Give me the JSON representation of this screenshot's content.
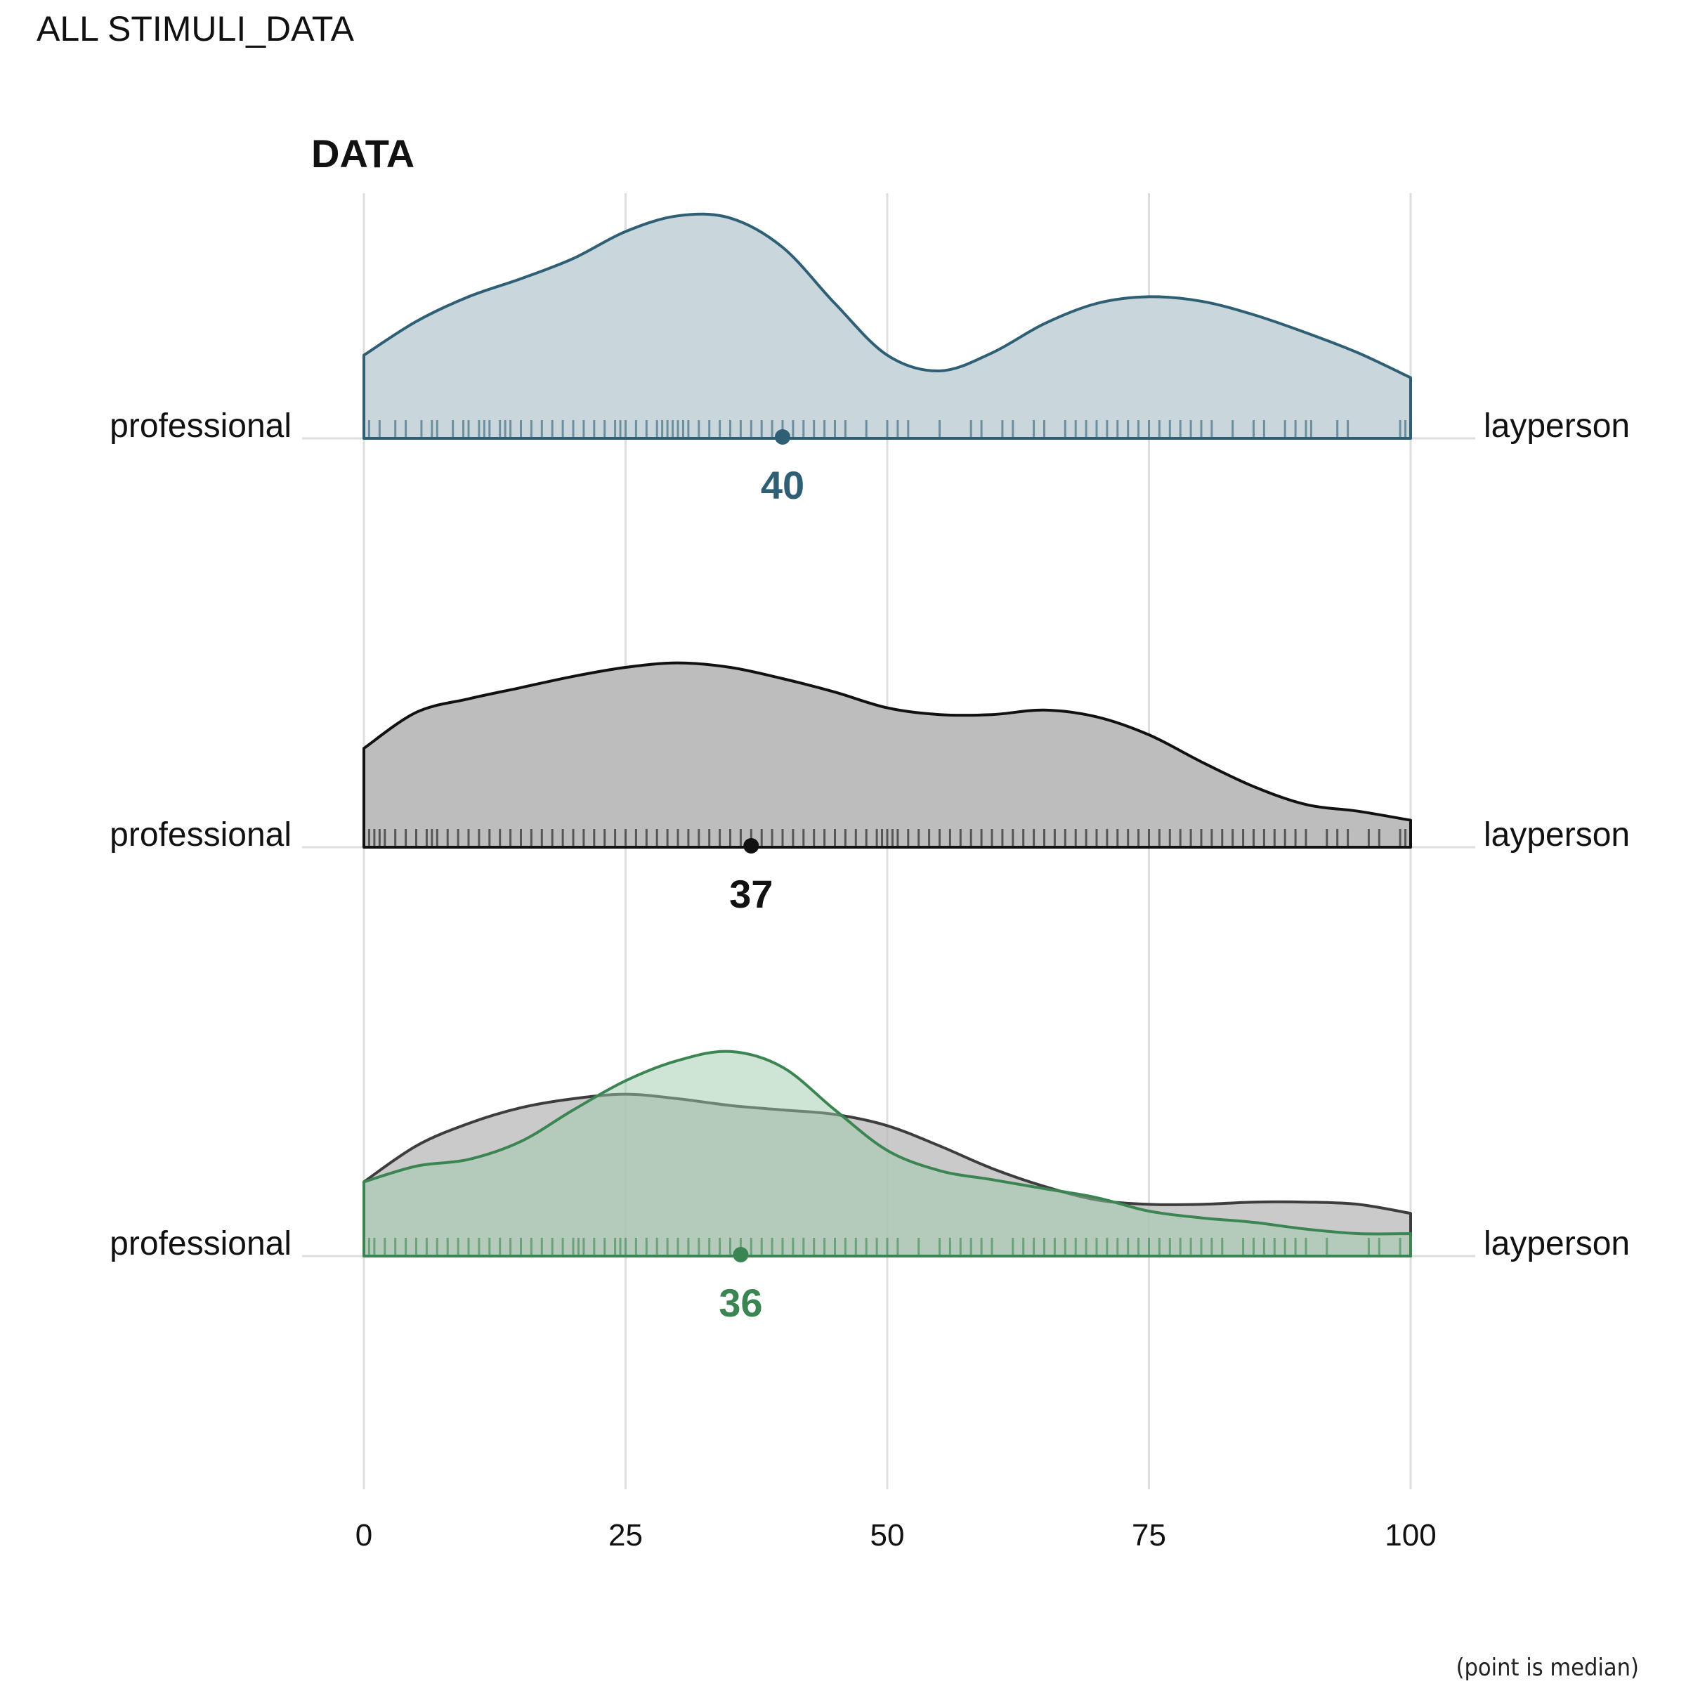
{
  "page": {
    "title": "ALL STIMULI_DATA",
    "caption": "(point is median)"
  },
  "chart_data": {
    "type": "ridgeline-density",
    "title": "DATA",
    "xlim": [
      0,
      100
    ],
    "x_ticks": [
      0,
      25,
      50,
      75,
      100
    ],
    "left_label": "professional",
    "right_label": "layperson",
    "grid": true,
    "density_x": [
      0,
      5,
      10,
      15,
      20,
      25,
      30,
      35,
      40,
      45,
      50,
      55,
      60,
      65,
      70,
      75,
      80,
      85,
      90,
      95,
      100
    ],
    "rows": [
      {
        "median": 40,
        "color": "#2e5f74",
        "fill": "#c9d7dd",
        "layers": [
          {
            "stroke": "#2e5f74",
            "fill": "#c9d7dd",
            "opacity": 1,
            "density": [
              0.37,
              0.52,
              0.63,
              0.71,
              0.8,
              0.92,
              0.99,
              0.98,
              0.85,
              0.6,
              0.37,
              0.3,
              0.38,
              0.51,
              0.6,
              0.63,
              0.61,
              0.55,
              0.47,
              0.38,
              0.27
            ]
          }
        ],
        "ticks": [
          0.5,
          1.5,
          3,
          4,
          5.5,
          6.5,
          7,
          8.5,
          9.5,
          10,
          11,
          11.5,
          12,
          13,
          13.5,
          14,
          15,
          16,
          17,
          18,
          19,
          20,
          21,
          22,
          23,
          24,
          24.5,
          25,
          26,
          27,
          28,
          28.5,
          29,
          29.5,
          30,
          30.5,
          31,
          32,
          33,
          34,
          35,
          36,
          37,
          38,
          39,
          40,
          41,
          42,
          43,
          44,
          45,
          46,
          48,
          50,
          51,
          52,
          55,
          58,
          59,
          61,
          62,
          64,
          65,
          67,
          68,
          69,
          70,
          71,
          72,
          73,
          74,
          75,
          76,
          77,
          78,
          79,
          80,
          81,
          83,
          85,
          86,
          88,
          89,
          90,
          90.5,
          93,
          94,
          99,
          99.5
        ]
      },
      {
        "median": 37,
        "color": "#111111",
        "fill": "#bdbdbd",
        "layers": [
          {
            "stroke": "#111111",
            "fill": "#bdbdbd",
            "opacity": 1,
            "density": [
              0.44,
              0.6,
              0.66,
              0.71,
              0.76,
              0.8,
              0.82,
              0.8,
              0.75,
              0.69,
              0.62,
              0.59,
              0.59,
              0.61,
              0.58,
              0.5,
              0.38,
              0.27,
              0.19,
              0.16,
              0.12
            ]
          }
        ],
        "ticks": [
          0,
          0.5,
          1,
          1.5,
          2,
          3,
          4,
          5,
          6,
          6.5,
          7,
          8,
          9,
          10,
          11,
          12,
          13,
          14,
          15,
          16,
          17,
          18,
          19,
          20,
          21,
          22,
          23,
          24,
          25,
          26,
          27,
          28,
          29,
          30,
          31,
          32,
          33,
          34,
          35,
          36,
          37,
          38,
          39,
          40,
          41,
          42,
          43,
          44,
          45,
          46,
          47,
          48,
          49,
          49.5,
          50,
          50.5,
          51,
          52,
          53,
          54,
          55,
          56,
          57,
          58,
          59,
          60,
          61,
          62,
          63,
          64,
          65,
          66,
          67,
          68,
          69,
          70,
          71,
          72,
          73,
          74,
          75,
          76,
          77,
          78,
          79,
          80,
          81,
          82,
          83,
          84,
          85,
          86,
          87,
          88,
          89,
          90,
          92,
          93,
          94,
          96,
          97,
          99,
          99.5,
          100
        ]
      },
      {
        "median": 36,
        "color": "#3a8552",
        "fill": "#cde2d3",
        "layers": [
          {
            "stroke": "#3d3d3d",
            "fill": "#b8b8b8",
            "opacity": 0.75,
            "density": [
              0.33,
              0.49,
              0.59,
              0.66,
              0.7,
              0.72,
              0.7,
              0.67,
              0.65,
              0.63,
              0.58,
              0.49,
              0.39,
              0.31,
              0.25,
              0.23,
              0.23,
              0.24,
              0.24,
              0.23,
              0.19
            ]
          },
          {
            "stroke": "#3a8552",
            "fill": "#9ec9aa",
            "opacity": 0.5,
            "density": [
              0.33,
              0.4,
              0.43,
              0.51,
              0.65,
              0.78,
              0.87,
              0.91,
              0.84,
              0.65,
              0.47,
              0.38,
              0.34,
              0.3,
              0.26,
              0.2,
              0.17,
              0.15,
              0.12,
              0.1,
              0.1
            ]
          }
        ],
        "ticks": [
          0,
          0.5,
          1,
          2,
          3,
          4,
          5,
          6,
          7,
          8,
          9,
          10,
          11,
          12,
          13,
          14,
          15,
          16,
          17,
          18,
          19,
          20,
          20.5,
          21,
          22,
          23,
          24,
          24.5,
          25,
          26,
          27,
          28,
          29,
          30,
          31,
          32,
          33,
          34,
          35,
          36,
          37,
          38,
          39,
          40,
          41,
          42,
          43,
          44,
          45,
          46,
          47,
          48,
          49,
          50,
          51,
          53,
          55,
          56,
          57,
          58,
          59,
          60,
          62,
          63,
          64,
          65,
          66,
          67,
          68,
          69,
          70,
          71,
          72,
          73,
          74,
          75,
          76,
          77,
          78,
          79,
          80,
          81,
          82,
          84,
          85,
          86,
          87,
          88,
          89,
          90,
          92,
          96,
          97,
          99,
          100
        ]
      }
    ]
  }
}
